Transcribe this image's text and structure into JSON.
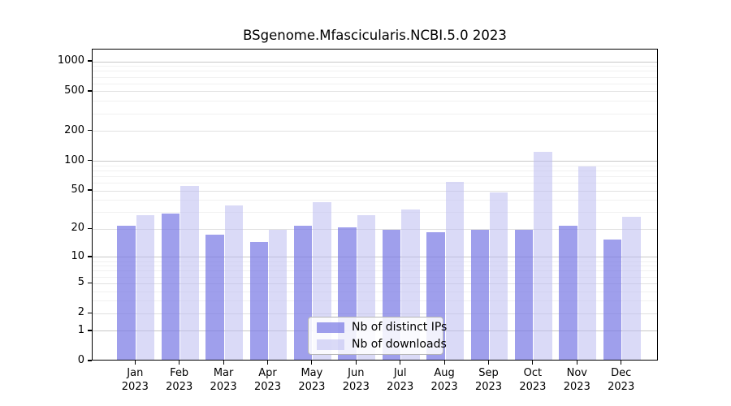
{
  "chart_data": {
    "type": "bar",
    "title": "BSgenome.Mfascicularis.NCBI.5.0 2023",
    "categories": [
      "Jan",
      "Feb",
      "Mar",
      "Apr",
      "May",
      "Jun",
      "Jul",
      "Aug",
      "Sep",
      "Oct",
      "Nov",
      "Dec"
    ],
    "category_year": "2023",
    "series": [
      {
        "name": "Nb of distinct IPs",
        "values": [
          21,
          28,
          17,
          14,
          21,
          20,
          19,
          18,
          19,
          19,
          21,
          15
        ]
      },
      {
        "name": "Nb of downloads",
        "values": [
          27,
          54,
          34,
          19,
          37,
          27,
          31,
          59,
          46,
          120,
          85,
          26
        ]
      }
    ],
    "yticks": [
      1000,
      500,
      200,
      100,
      50,
      20,
      10,
      5,
      2,
      1,
      0
    ],
    "minor_gridlines": [
      3,
      4,
      6,
      7,
      8,
      9,
      30,
      40,
      60,
      70,
      80,
      90,
      300,
      400,
      600,
      700,
      800,
      900
    ],
    "scale": "log1p",
    "ylim": [
      0,
      1325
    ],
    "grid": true,
    "legend_position": "bottom-center",
    "colors": {
      "ips_bar": "rgba(122,122,228,0.72)",
      "downloads_bar": "rgba(188,188,240,0.55)",
      "grid_decade": "#c8c8c8",
      "grid_major": "#e1e1e1",
      "grid_minor": "#f1f1f1"
    }
  }
}
